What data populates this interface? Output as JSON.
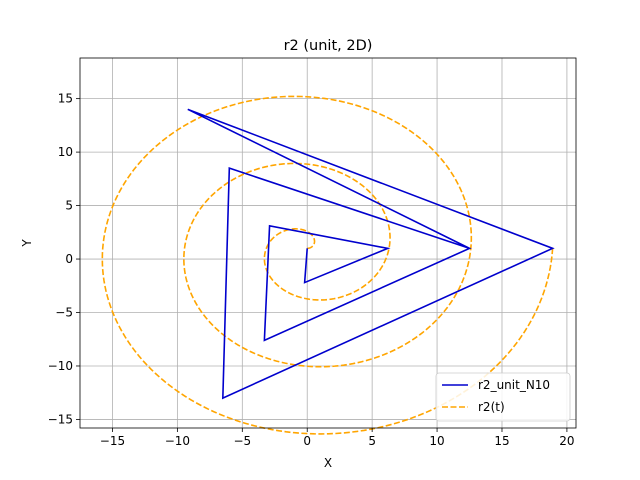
{
  "chart_data": {
    "type": "line",
    "title": "r2 (unit, 2D)",
    "xlabel": "X",
    "ylabel": "Y",
    "xlim": [
      -17.5,
      20.7
    ],
    "ylim": [
      -15.8,
      18.8
    ],
    "xticks": [
      -15,
      -10,
      -5,
      0,
      5,
      10,
      15,
      20
    ],
    "yticks": [
      -15,
      -10,
      -5,
      0,
      5,
      10,
      15
    ],
    "grid": true,
    "legend_position": "lower-right",
    "series": [
      {
        "name": "r2_unit_N10",
        "color": "#0000cd",
        "style": "solid",
        "points": [
          [
            0.0,
            1.0
          ],
          [
            -0.2,
            -2.2
          ],
          [
            6.2,
            1.0
          ],
          [
            -2.9,
            3.1
          ],
          [
            -3.3,
            -7.6
          ],
          [
            12.5,
            1.0
          ],
          [
            -6.0,
            8.5
          ],
          [
            -6.5,
            -13.0
          ],
          [
            18.9,
            1.0
          ],
          [
            -9.2,
            14.0
          ],
          [
            12.5,
            1.0
          ]
        ]
      },
      {
        "name": "r2(t)",
        "color": "#ffa500",
        "style": "dashed",
        "spiral": {
          "x0": 0.0,
          "y0": 1.0,
          "x_end": 18.9,
          "revolutions": 3,
          "samples": 600
        }
      }
    ]
  }
}
